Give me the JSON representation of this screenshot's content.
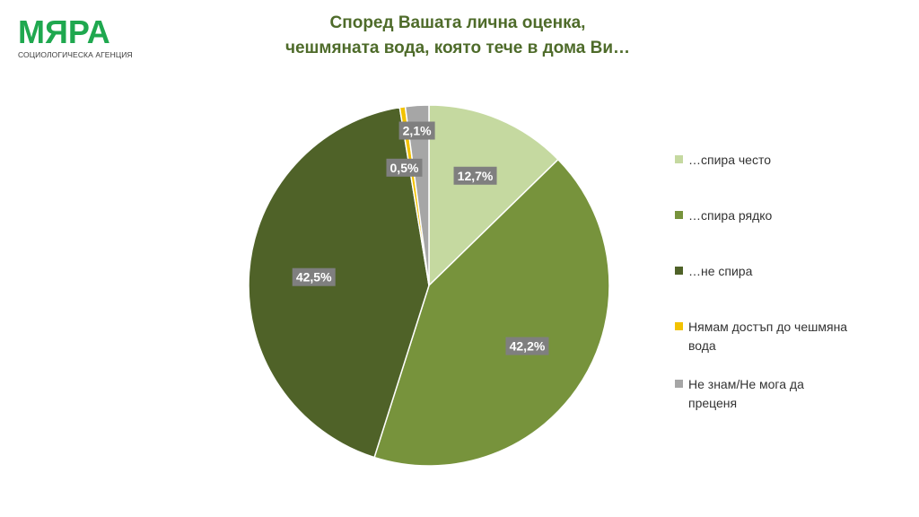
{
  "logo": {
    "word": "МЯРА",
    "subtitle": "СОЦИОЛОГИЧЕСКА АГЕНЦИЯ"
  },
  "title": {
    "line1": "Според Вашата лична оценка,",
    "line2": "чешмяната вода, която тече в дома Ви…"
  },
  "chart_data": {
    "type": "pie",
    "start_angle_deg": 0,
    "direction": "clockwise",
    "legend_position": "right",
    "slices": [
      {
        "label": "…спира често",
        "value": 12.7,
        "display": "12,7%",
        "color": "#c5d9a0"
      },
      {
        "label": "…спира рядко",
        "value": 42.2,
        "display": "42,2%",
        "color": "#77933c"
      },
      {
        "label": "…не спира",
        "value": 42.5,
        "display": "42,5%",
        "color": "#4f6228"
      },
      {
        "label": "Нямам достъп до чешмяна вода",
        "value": 0.5,
        "display": "0,5%",
        "color": "#f2c200"
      },
      {
        "label": "Не знам/Не мога да преценя",
        "value": 2.1,
        "display": "2,1%",
        "color": "#a6a6a6"
      }
    ]
  }
}
